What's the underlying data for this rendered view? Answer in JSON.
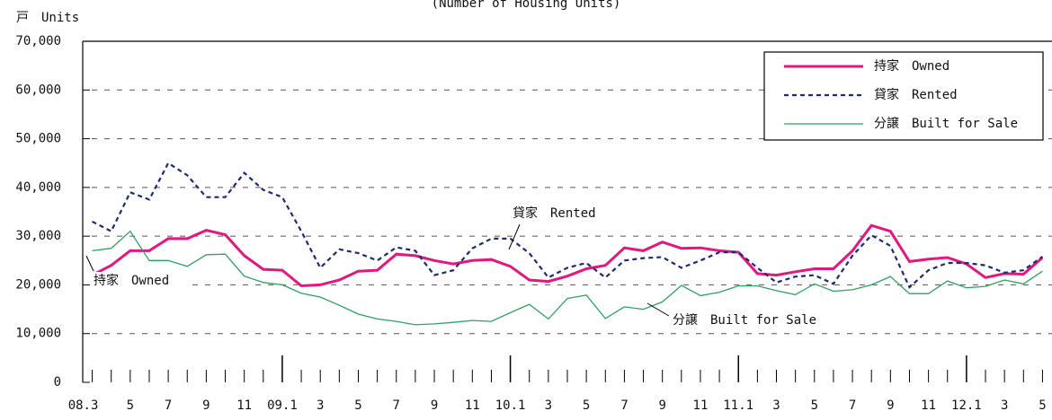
{
  "chart_data": {
    "type": "line",
    "title": "(Number of Housing Units)",
    "y_unit_label": "戸　Units",
    "categories": [
      "08.3",
      null,
      "5",
      null,
      "7",
      null,
      "9",
      null,
      "11",
      null,
      "09.1",
      null,
      "3",
      null,
      "5",
      null,
      "7",
      null,
      "9",
      null,
      "11",
      null,
      "10.1",
      null,
      "3",
      null,
      "5",
      null,
      "7",
      null,
      "9",
      null,
      "11",
      null,
      "11.1",
      null,
      "3",
      null,
      "5",
      null,
      "7",
      null,
      "9",
      null,
      "11",
      null,
      "12.1",
      null,
      "3",
      null,
      "5"
    ],
    "series": [
      {
        "name": "持家　Owned",
        "color": "#e2177f",
        "style": "solid",
        "values": [
          22000,
          24000,
          27000,
          27000,
          29500,
          29500,
          31200,
          30300,
          26000,
          23200,
          23000,
          19800,
          20000,
          21000,
          22800,
          23000,
          26300,
          26000,
          25000,
          24300,
          25000,
          25200,
          23800,
          21000,
          20700,
          21800,
          23300,
          24000,
          27600,
          27000,
          28800,
          27500,
          27600,
          27000,
          26700,
          22300,
          22000,
          22700,
          23300,
          23300,
          27000,
          32200,
          31000,
          24800,
          25300,
          25600,
          24300,
          21500,
          22300,
          22200,
          25600
        ]
      },
      {
        "name": "貸家　Rented",
        "color": "#1c2a7a",
        "style": "dashed",
        "values": [
          33000,
          31000,
          39000,
          37500,
          45000,
          42500,
          38000,
          38000,
          43000,
          39500,
          38000,
          31000,
          23500,
          27300,
          26500,
          25000,
          27700,
          27000,
          22000,
          23000,
          27500,
          29500,
          29500,
          26500,
          21500,
          23500,
          24500,
          21500,
          25000,
          25500,
          25700,
          23500,
          25000,
          26700,
          26700,
          23500,
          20500,
          21700,
          22000,
          20200,
          26000,
          30200,
          28000,
          19500,
          23000,
          24500,
          24500,
          24000,
          22500,
          23000,
          25800
        ]
      },
      {
        "name": "分譲　Built for Sale",
        "color": "#2aa45c",
        "style": "thin",
        "values": [
          27000,
          27500,
          31000,
          25000,
          25000,
          23800,
          26200,
          26300,
          21800,
          20500,
          20000,
          18300,
          17500,
          15800,
          14000,
          13000,
          12500,
          11800,
          12000,
          12300,
          12700,
          12500,
          14300,
          16000,
          13000,
          17200,
          17900,
          13100,
          15500,
          15000,
          16500,
          19900,
          17800,
          18500,
          19800,
          19800,
          18800,
          18000,
          20200,
          18700,
          19000,
          20000,
          21700,
          18200,
          18200,
          20800,
          19400,
          19700,
          21000,
          20200,
          22800
        ]
      }
    ],
    "annotations": [
      "貸家　Rented",
      "持家　Owned",
      "分譲　Built for Sale"
    ],
    "ylim": [
      0,
      70000
    ],
    "yticks": [
      0,
      {
        "value": 10000,
        "label": "10,000"
      },
      {
        "value": 20000,
        "label": "20,000"
      },
      {
        "value": 30000,
        "label": "30,000"
      },
      {
        "value": 40000,
        "label": "40,000"
      },
      {
        "value": 50000,
        "label": "50,000"
      },
      {
        "value": 60000,
        "label": "60,000"
      },
      {
        "value": 70000,
        "label": "70,000"
      }
    ],
    "grid": true,
    "legend": "upper right"
  }
}
